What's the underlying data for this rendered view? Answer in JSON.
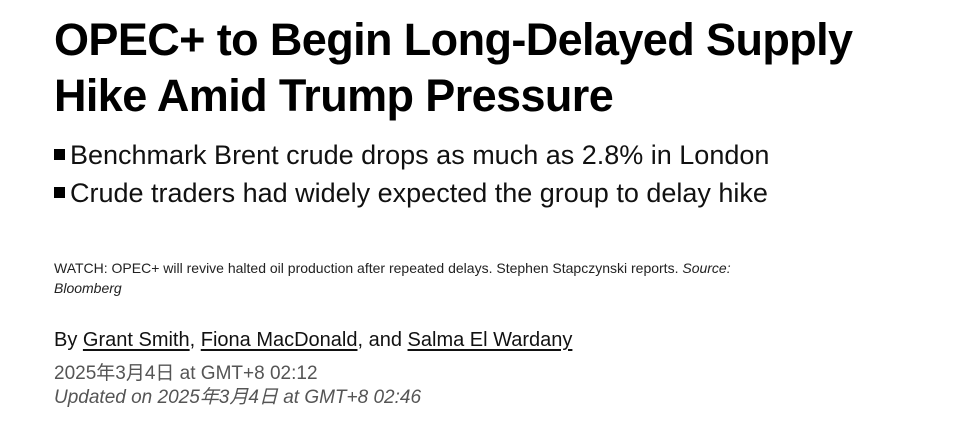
{
  "headline": {
    "line1": "OPEC+ to Begin Long-Delayed Supply",
    "line2": "Hike Amid Trump Pressure"
  },
  "bullets": [
    "Benchmark Brent crude drops as much as 2.8% in London",
    "Crude traders had widely expected the group to delay hike"
  ],
  "caption": {
    "text": "WATCH: OPEC+ will revive halted oil production after repeated delays. Stephen Stapczynski reports.",
    "source": "Source: Bloomberg"
  },
  "byline": {
    "prefix": "By",
    "authors": [
      "Grant Smith",
      "Fiona MacDonald",
      "Salma El Wardany"
    ],
    "separator1": ",",
    "separator2": ", and"
  },
  "timestamps": {
    "published": "2025年3月4日 at GMT+8 02:12",
    "updated": "Updated on 2025年3月4日 at GMT+8 02:46"
  }
}
